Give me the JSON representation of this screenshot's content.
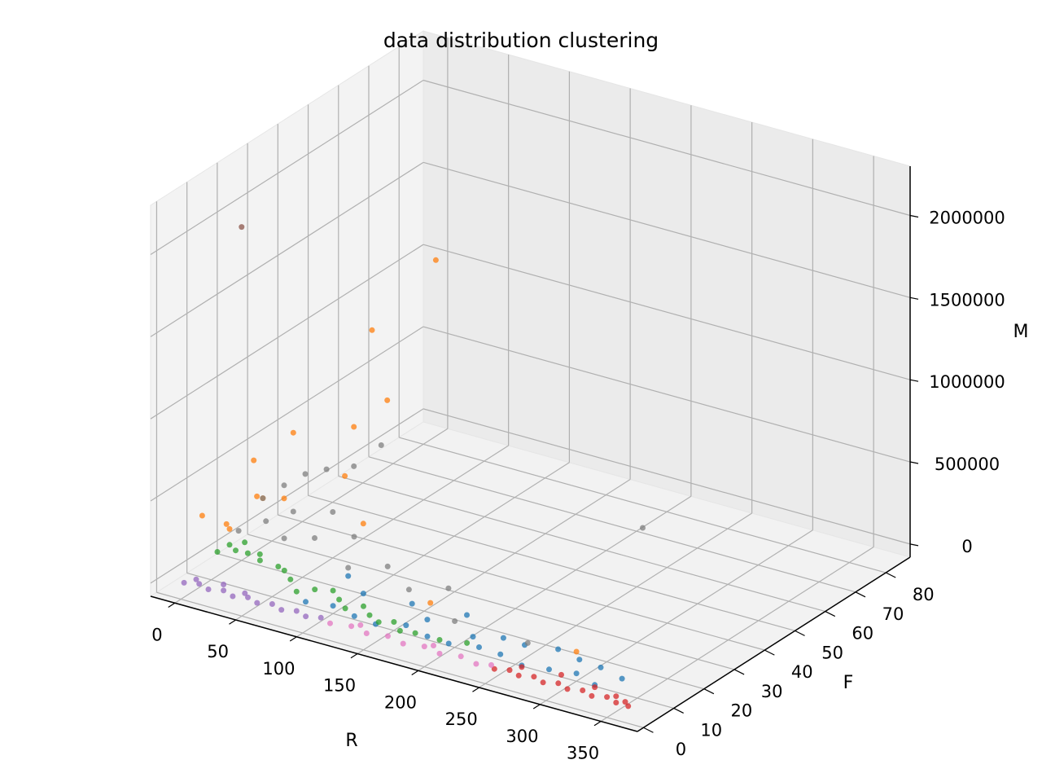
{
  "chart_data": {
    "type": "scatter",
    "projection": "3d",
    "title": "data distribution clustering",
    "xlabel": "R",
    "ylabel": "F",
    "zlabel": "M",
    "xlim": [
      -20,
      380
    ],
    "ylim": [
      -2,
      88
    ],
    "zlim": [
      -80000,
      2300000
    ],
    "xticks": [
      "0",
      "50",
      "100",
      "150",
      "200",
      "250",
      "300",
      "350"
    ],
    "yticks": [
      "0",
      "10",
      "20",
      "30",
      "40",
      "50",
      "60",
      "70",
      "80"
    ],
    "zticks": [
      "0",
      "500000",
      "1000000",
      "1500000",
      "2000000"
    ],
    "grid": true,
    "legend": "none",
    "series": [
      {
        "color": "#1f77b4",
        "cluster": 0,
        "points": [
          [
            90,
            5,
            30000
          ],
          [
            110,
            6,
            35000
          ],
          [
            130,
            5,
            25000
          ],
          [
            150,
            4,
            30000
          ],
          [
            170,
            6,
            40000
          ],
          [
            190,
            5,
            25000
          ],
          [
            210,
            4,
            35000
          ],
          [
            230,
            6,
            30000
          ],
          [
            250,
            5,
            40000
          ],
          [
            270,
            4,
            25000
          ],
          [
            290,
            5,
            30000
          ],
          [
            310,
            6,
            35000
          ],
          [
            330,
            4,
            30000
          ],
          [
            120,
            12,
            60000
          ],
          [
            160,
            12,
            80000
          ],
          [
            200,
            14,
            70000
          ],
          [
            240,
            10,
            60000
          ],
          [
            280,
            12,
            50000
          ],
          [
            300,
            11,
            40000
          ],
          [
            320,
            10,
            45000
          ],
          [
            340,
            9,
            30000
          ],
          [
            100,
            15,
            90000
          ],
          [
            180,
            9,
            60000
          ],
          [
            220,
            8,
            50000
          ],
          [
            260,
            9,
            70000
          ]
        ]
      },
      {
        "color": "#ff7f0e",
        "cluster": 1,
        "points": [
          [
            60,
            60,
            1400000
          ],
          [
            20,
            55,
            950000
          ],
          [
            40,
            52,
            600000
          ],
          [
            30,
            25,
            700000
          ],
          [
            10,
            20,
            550000
          ],
          [
            30,
            45,
            500000
          ],
          [
            100,
            20,
            350000
          ],
          [
            25,
            15,
            420000
          ],
          [
            5,
            5,
            380000
          ],
          [
            15,
            10,
            260000
          ],
          [
            5,
            25,
            250000
          ],
          [
            35,
            40,
            270000
          ],
          [
            0,
            15,
            200000
          ],
          [
            10,
            30,
            200000
          ],
          [
            180,
            10,
            150000
          ],
          [
            300,
            10,
            100000
          ]
        ]
      },
      {
        "color": "#2ca02c",
        "cluster": 2,
        "points": [
          [
            5,
            10,
            100000
          ],
          [
            10,
            12,
            130000
          ],
          [
            15,
            15,
            120000
          ],
          [
            20,
            10,
            140000
          ],
          [
            25,
            12,
            110000
          ],
          [
            30,
            14,
            90000
          ],
          [
            40,
            10,
            120000
          ],
          [
            50,
            12,
            80000
          ],
          [
            60,
            10,
            100000
          ],
          [
            70,
            8,
            90000
          ],
          [
            80,
            6,
            60000
          ],
          [
            90,
            8,
            70000
          ],
          [
            100,
            10,
            60000
          ],
          [
            110,
            8,
            50000
          ],
          [
            120,
            6,
            40000
          ],
          [
            130,
            8,
            50000
          ],
          [
            140,
            6,
            40000
          ],
          [
            150,
            5,
            30000
          ],
          [
            160,
            6,
            40000
          ],
          [
            170,
            4,
            30000
          ],
          [
            180,
            5,
            25000
          ],
          [
            200,
            5,
            25000
          ],
          [
            220,
            6,
            35000
          ]
        ]
      },
      {
        "color": "#d62728",
        "cluster": 3,
        "points": [
          [
            255,
            1,
            8000
          ],
          [
            265,
            2,
            10000
          ],
          [
            275,
            1,
            9000
          ],
          [
            285,
            2,
            11000
          ],
          [
            295,
            1,
            8000
          ],
          [
            305,
            2,
            12000
          ],
          [
            315,
            1,
            9000
          ],
          [
            325,
            2,
            10000
          ],
          [
            335,
            1,
            8000
          ],
          [
            345,
            2,
            11000
          ],
          [
            355,
            1,
            9000
          ],
          [
            360,
            2,
            12000
          ],
          [
            365,
            1,
            8000
          ],
          [
            270,
            4,
            15000
          ],
          [
            300,
            5,
            18000
          ],
          [
            330,
            4,
            16000
          ],
          [
            350,
            3,
            14000
          ]
        ]
      },
      {
        "color": "#9467bd",
        "cluster": 4,
        "points": [
          [
            0,
            1,
            8000
          ],
          [
            10,
            2,
            10000
          ],
          [
            20,
            1,
            9000
          ],
          [
            30,
            2,
            11000
          ],
          [
            40,
            1,
            8000
          ],
          [
            50,
            2,
            10000
          ],
          [
            60,
            1,
            9000
          ],
          [
            70,
            2,
            11000
          ],
          [
            80,
            1,
            8000
          ],
          [
            90,
            2,
            10000
          ],
          [
            100,
            1,
            9000
          ],
          [
            110,
            2,
            10000
          ],
          [
            5,
            3,
            15000
          ],
          [
            25,
            4,
            14000
          ],
          [
            45,
            3,
            13000
          ]
        ]
      },
      {
        "color": "#8c564b",
        "cluster": 5,
        "points": [
          [
            0,
            20,
            1950000
          ]
        ]
      },
      {
        "color": "#e377c2",
        "cluster": 6,
        "points": [
          [
            120,
            1,
            8000
          ],
          [
            135,
            2,
            10000
          ],
          [
            150,
            1,
            9000
          ],
          [
            165,
            2,
            11000
          ],
          [
            180,
            1,
            8000
          ],
          [
            195,
            2,
            10000
          ],
          [
            210,
            1,
            9000
          ],
          [
            225,
            2,
            11000
          ],
          [
            240,
            1,
            8000
          ],
          [
            250,
            2,
            10000
          ],
          [
            140,
            3,
            15000
          ],
          [
            200,
            3,
            14000
          ]
        ]
      },
      {
        "color": "#7f7f7f",
        "cluster": 7,
        "points": [
          [
            5,
            25,
            250000
          ],
          [
            10,
            30,
            280000
          ],
          [
            15,
            35,
            300000
          ],
          [
            20,
            40,
            280000
          ],
          [
            30,
            45,
            260000
          ],
          [
            40,
            50,
            350000
          ],
          [
            20,
            20,
            200000
          ],
          [
            30,
            25,
            220000
          ],
          [
            50,
            30,
            200000
          ],
          [
            60,
            20,
            180000
          ],
          [
            80,
            25,
            170000
          ],
          [
            100,
            15,
            140000
          ],
          [
            120,
            20,
            130000
          ],
          [
            150,
            15,
            110000
          ],
          [
            170,
            20,
            100000
          ],
          [
            200,
            10,
            80000
          ],
          [
            230,
            60,
            120000
          ],
          [
            260,
            10,
            70000
          ],
          [
            10,
            15,
            180000
          ],
          [
            40,
            18,
            160000
          ]
        ]
      }
    ]
  }
}
